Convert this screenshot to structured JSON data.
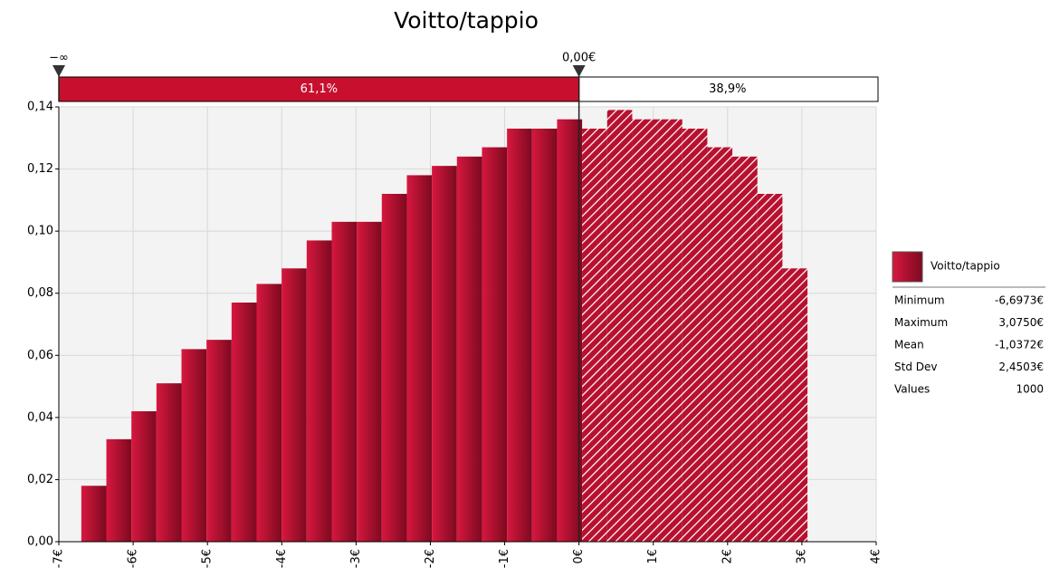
{
  "chart_data": {
    "type": "histogram",
    "title": "Voitto/tappio",
    "color": "#c8102e",
    "bins": [
      -6.6973,
      -6.3603,
      -6.0233,
      -5.6864,
      -5.3494,
      -5.0124,
      -4.6754,
      -4.3385,
      -4.0015,
      -3.6645,
      -3.3275,
      -2.9906,
      -2.6536,
      -2.3166,
      -1.9796,
      -1.6427,
      -1.3057,
      -0.9687,
      -0.6317,
      -0.2948,
      0.0422,
      0.3792,
      0.7162,
      1.0531,
      1.3901,
      1.7271,
      2.0641,
      2.401,
      2.738,
      3.075
    ],
    "values": [
      0.018,
      0.033,
      0.042,
      0.051,
      0.062,
      0.065,
      0.077,
      0.083,
      0.088,
      0.097,
      0.103,
      0.103,
      0.112,
      0.118,
      0.121,
      0.124,
      0.127,
      0.133,
      0.133,
      0.136,
      0.133,
      0.139,
      0.136,
      0.136,
      0.133,
      0.127,
      0.124,
      0.112,
      0.088
    ],
    "xlim": [
      -7,
      4
    ],
    "ylim": [
      0,
      0.14
    ],
    "xticks": [
      {
        "value": -7,
        "label": "-7€"
      },
      {
        "value": -6,
        "label": "-6€"
      },
      {
        "value": -5,
        "label": "-5€"
      },
      {
        "value": -4,
        "label": "-4€"
      },
      {
        "value": -3,
        "label": "-3€"
      },
      {
        "value": -2,
        "label": "-2€"
      },
      {
        "value": -1,
        "label": "-1€"
      },
      {
        "value": 0,
        "label": "0€"
      },
      {
        "value": 1,
        "label": "1€"
      },
      {
        "value": 2,
        "label": "2€"
      },
      {
        "value": 3,
        "label": "3€"
      },
      {
        "value": 4,
        "label": "4€"
      }
    ],
    "yticks": [
      {
        "value": 0,
        "label": "0,00"
      },
      {
        "value": 0.02,
        "label": "0,02"
      },
      {
        "value": 0.04,
        "label": "0,04"
      },
      {
        "value": 0.06,
        "label": "0,06"
      },
      {
        "value": 0.08,
        "label": "0,08"
      },
      {
        "value": 0.1,
        "label": "0,10"
      },
      {
        "value": 0.12,
        "label": "0,12"
      },
      {
        "value": 0.14,
        "label": "0,14"
      }
    ],
    "grid": true,
    "left_delimiter": "−∞",
    "delimiter": {
      "value": 0,
      "label": "0,00€"
    },
    "regions": [
      "61,1%",
      "38,9%"
    ],
    "legend": "Voitto/tappio",
    "stats": [
      {
        "label": "Minimum",
        "value": "-6,6973€"
      },
      {
        "label": "Maximum",
        "value": "3,0750€"
      },
      {
        "label": "Mean",
        "value": "-1,0372€"
      },
      {
        "label": "Std Dev",
        "value": "2,4503€"
      },
      {
        "label": "Values",
        "value": "1000"
      }
    ]
  }
}
